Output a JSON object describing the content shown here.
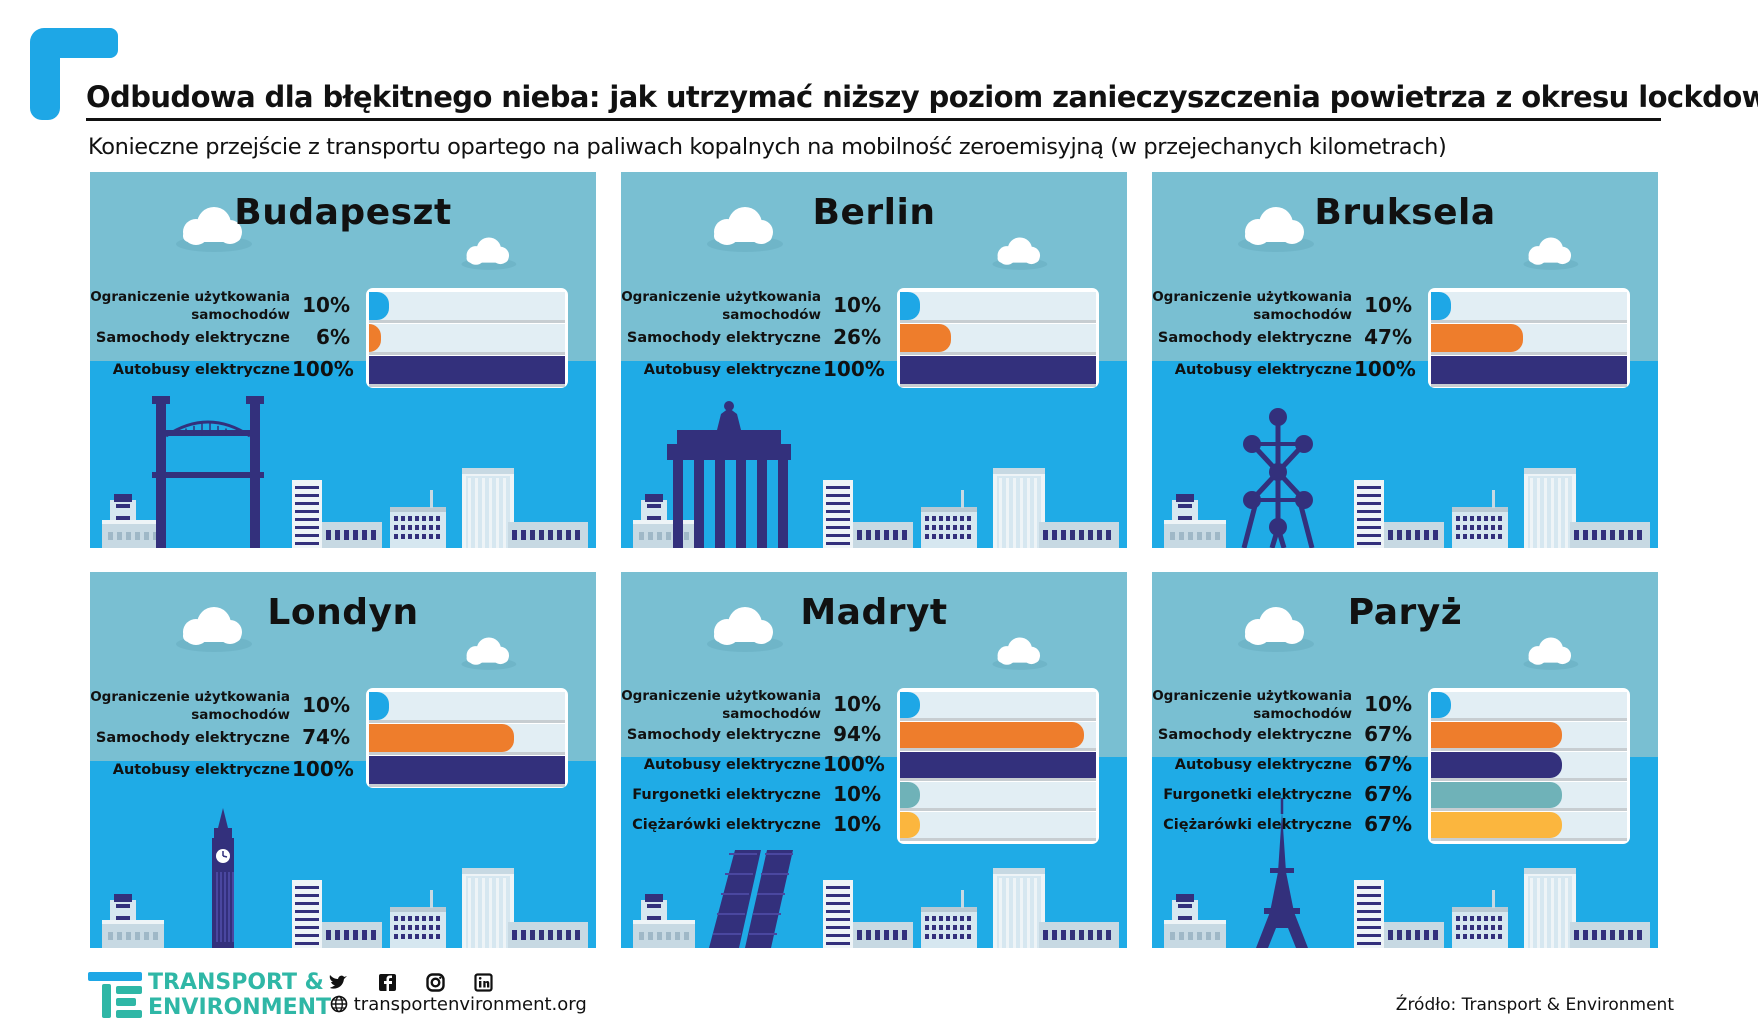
{
  "header": {
    "title": "Odbudowa dla błękitnego nieba: jak utrzymać niższy poziom zanieczyszczenia powietrza z okresu lockdownu",
    "subtitle": "Konieczne przejście z transportu opartego na paliwach kopalnych na mobilność zeroemisyjną (w przejechanych kilometrach)"
  },
  "colors": {
    "car_restriction": "#1ea7e6",
    "electric_cars": "#ee7d2c",
    "electric_buses": "#33307c",
    "electric_vans": "#6fb2b8",
    "electric_trucks": "#fbb63e",
    "sky": "#79bfd2",
    "ground": "#1fabe6",
    "buildings": "#33307c"
  },
  "chart_data": {
    "type": "bar",
    "series_colors": [
      "#1ea7e6",
      "#ee7d2c",
      "#33307c",
      "#6fb2b8",
      "#fbb63e"
    ],
    "panels": [
      {
        "city": "Budapeszt",
        "landmark": "bridge",
        "rows": [
          {
            "label": "Ograniczenie użytkowania samochodów",
            "value": 10,
            "display": "10%"
          },
          {
            "label": "Samochody elektryczne",
            "value": 6,
            "display": "6%"
          },
          {
            "label": "Autobusy elektryczne",
            "value": 100,
            "display": "100%"
          }
        ]
      },
      {
        "city": "Berlin",
        "landmark": "gate",
        "rows": [
          {
            "label": "Ograniczenie użytkowania samochodów",
            "value": 10,
            "display": "10%"
          },
          {
            "label": "Samochody elektryczne",
            "value": 26,
            "display": "26%"
          },
          {
            "label": "Autobusy elektryczne",
            "value": 100,
            "display": "100%"
          }
        ]
      },
      {
        "city": "Bruksela",
        "landmark": "atomium",
        "rows": [
          {
            "label": "Ograniczenie użytkowania samochodów",
            "value": 10,
            "display": "10%"
          },
          {
            "label": "Samochody elektryczne",
            "value": 47,
            "display": "47%"
          },
          {
            "label": "Autobusy elektryczne",
            "value": 100,
            "display": "100%"
          }
        ]
      },
      {
        "city": "Londyn",
        "landmark": "bigben",
        "rows": [
          {
            "label": "Ograniczenie użytkowania samochodów",
            "value": 10,
            "display": "10%"
          },
          {
            "label": "Samochody elektryczne",
            "value": 74,
            "display": "74%"
          },
          {
            "label": "Autobusy elektryczne",
            "value": 100,
            "display": "100%"
          }
        ]
      },
      {
        "city": "Madryt",
        "landmark": "kio",
        "rows": [
          {
            "label": "Ograniczenie użytkowania samochodów",
            "value": 10,
            "display": "10%"
          },
          {
            "label": "Samochody elektryczne",
            "value": 94,
            "display": "94%"
          },
          {
            "label": "Autobusy elektryczne",
            "value": 100,
            "display": "100%"
          },
          {
            "label": "Furgonetki elektryczne",
            "value": 10,
            "display": "10%"
          },
          {
            "label": "Ciężarówki elektryczne",
            "value": 10,
            "display": "10%"
          }
        ]
      },
      {
        "city": "Paryż",
        "landmark": "eiffel",
        "rows": [
          {
            "label": "Ograniczenie użytkowania samochodów",
            "value": 10,
            "display": "10%"
          },
          {
            "label": "Samochody elektryczne",
            "value": 67,
            "display": "67%"
          },
          {
            "label": "Autobusy elektryczne",
            "value": 67,
            "display": "67%"
          },
          {
            "label": "Furgonetki elektryczne",
            "value": 67,
            "display": "67%"
          },
          {
            "label": "Ciężarówki elektryczne",
            "value": 67,
            "display": "67%"
          }
        ]
      }
    ]
  },
  "footer": {
    "brand_line1": "TRANSPORT &",
    "brand_line2": "ENVIRONMENT",
    "social_icons": [
      "twitter-icon",
      "facebook-icon",
      "instagram-icon",
      "linkedin-icon"
    ],
    "website": "transportenvironment.org",
    "source": "Źródło: Transport & Environment"
  }
}
